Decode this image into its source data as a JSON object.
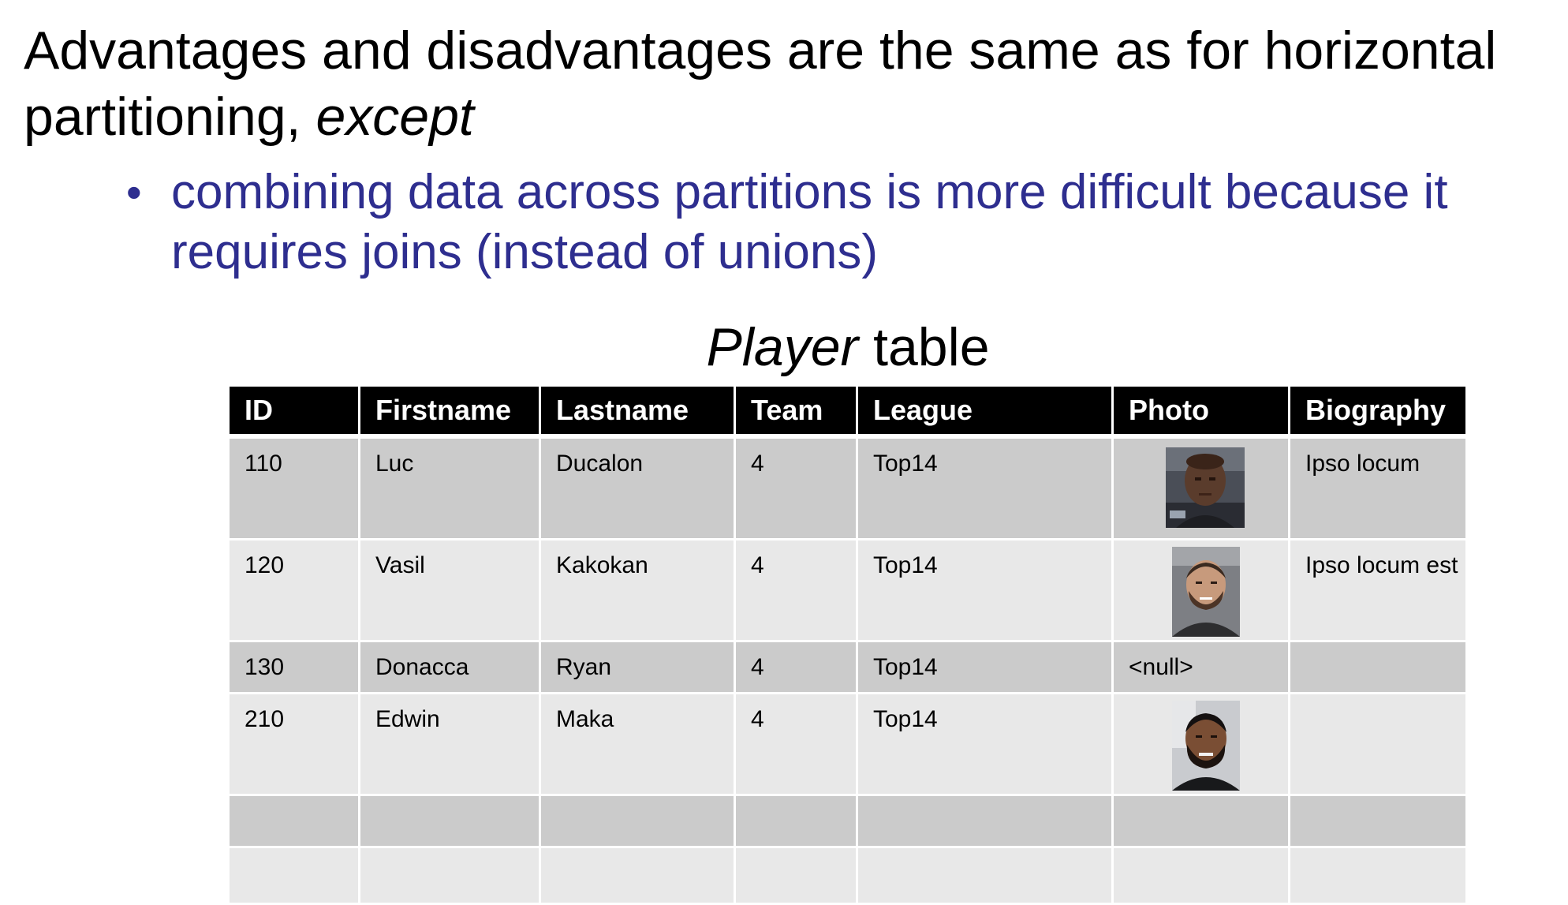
{
  "heading": {
    "text_before": "Advantages and disadvantages are the same as for horizontal partitioning, ",
    "text_emphasis": "except"
  },
  "bullets": [
    {
      "marker": "•",
      "text": "combining data across partitions is more difficult because it requires joins (instead of unions)"
    }
  ],
  "table_title": {
    "emphasis": "Player",
    "rest": " table"
  },
  "table": {
    "columns": [
      "ID",
      "Firstname",
      "Lastname",
      "Team",
      "League",
      "Photo",
      "Biography"
    ],
    "rows": [
      {
        "id": "110",
        "firstname": "Luc",
        "lastname": "Ducalon",
        "team": "4",
        "league": "Top14",
        "photo": "player-photo",
        "photo_text": "",
        "biography": "Ipso locum"
      },
      {
        "id": "120",
        "firstname": "Vasil",
        "lastname": "Kakokan",
        "team": "4",
        "league": "Top14",
        "photo": "player-photo",
        "photo_text": "",
        "biography": "Ipso locum est"
      },
      {
        "id": "130",
        "firstname": "Donacca",
        "lastname": "Ryan",
        "team": "4",
        "league": "Top14",
        "photo": "",
        "photo_text": "<null>",
        "biography": ""
      },
      {
        "id": "210",
        "firstname": "Edwin",
        "lastname": "Maka",
        "team": "4",
        "league": "Top14",
        "photo": "player-photo",
        "photo_text": "",
        "biography": ""
      },
      {
        "id": "",
        "firstname": "",
        "lastname": "",
        "team": "",
        "league": "",
        "photo": "",
        "photo_text": "",
        "biography": ""
      },
      {
        "id": "",
        "firstname": "",
        "lastname": "",
        "team": "",
        "league": "",
        "photo": "",
        "photo_text": "",
        "biography": ""
      }
    ]
  },
  "colors": {
    "bullet_text": "#2e2e8f",
    "header_bg": "#000000",
    "row_dark": "#cbcbcb",
    "row_light": "#e8e8e8"
  }
}
